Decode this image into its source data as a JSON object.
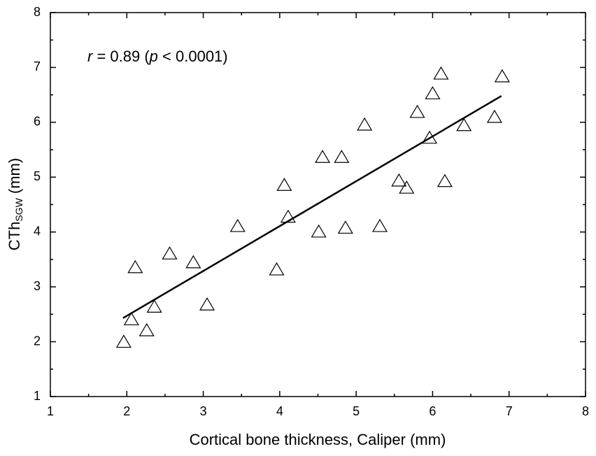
{
  "chart_data": {
    "type": "scatter",
    "xlabel": "Cortical bone thickness, Caliper (mm)",
    "ylabel": [
      "CTh",
      "SGW",
      " (mm)"
    ],
    "annotation": [
      "r",
      " = 0.89 (",
      "p",
      " < 0.0001)"
    ],
    "x": [
      1.96,
      2.06,
      2.11,
      2.26,
      2.36,
      2.56,
      2.87,
      3.05,
      3.45,
      3.96,
      4.06,
      4.11,
      4.51,
      4.56,
      4.81,
      4.86,
      5.11,
      5.31,
      5.56,
      5.66,
      5.8,
      5.96,
      6.0,
      6.11,
      6.16,
      6.41,
      6.81,
      6.91
    ],
    "values": [
      2.0,
      2.41,
      3.36,
      2.21,
      2.64,
      3.61,
      3.45,
      2.68,
      4.11,
      3.32,
      4.86,
      4.28,
      4.01,
      5.37,
      5.37,
      4.08,
      5.96,
      4.11,
      4.94,
      4.81,
      6.19,
      5.72,
      6.53,
      6.89,
      4.93,
      5.95,
      6.1,
      6.84
    ],
    "color": "#000000",
    "fit": {
      "x": [
        1.95,
        6.9
      ],
      "y": [
        2.43,
        6.48
      ]
    },
    "xlim": [
      1,
      8
    ],
    "xticks": [
      1,
      2,
      3,
      4,
      5,
      6,
      7,
      8
    ],
    "ylim": [
      1,
      8
    ],
    "yticks": [
      1,
      2,
      3,
      4,
      5,
      6,
      7,
      8
    ],
    "grid": false
  }
}
